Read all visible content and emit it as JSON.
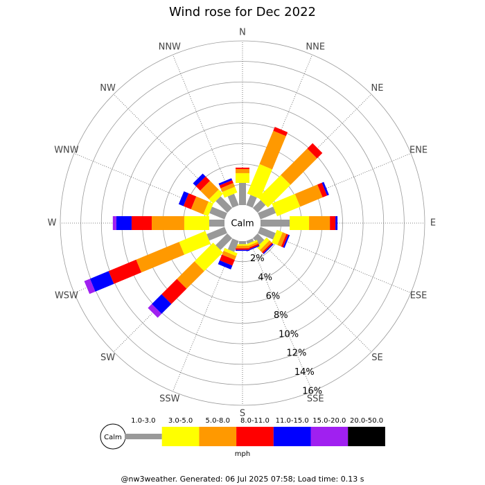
{
  "chart_data": {
    "type": "windrose",
    "title": "Wind rose for Dec 2022",
    "calm_label": "Calm",
    "units": "mph",
    "footer": "@nw3weather. Generated: 06 Jul 2025 07:58; Load time: 0.13 s",
    "categories": [
      "N",
      "NNE",
      "NE",
      "ENE",
      "E",
      "ESE",
      "SE",
      "SSE",
      "S",
      "SSW",
      "SW",
      "WSW",
      "W",
      "WNW",
      "NW",
      "NNW"
    ],
    "ylim": [
      0,
      16
    ],
    "yticks": [
      {
        "value": 2,
        "label": "2%"
      },
      {
        "value": 4,
        "label": "4%"
      },
      {
        "value": 6,
        "label": "6%"
      },
      {
        "value": 8,
        "label": "8%"
      },
      {
        "value": 10,
        "label": "10%"
      },
      {
        "value": 12,
        "label": "12%"
      },
      {
        "value": 14,
        "label": "14%"
      },
      {
        "value": 16,
        "label": "16%"
      }
    ],
    "series": [
      {
        "name": "1.0-3.0",
        "color": "#999999",
        "values": [
          2.16,
          1.08,
          1.08,
          1.62,
          2.84,
          1.6,
          0.9,
          0.3,
          0.3,
          1.15,
          1.62,
          1.89,
          1.49,
          1.6,
          1.6,
          1.2
        ]
      },
      {
        "name": "3.0-5.0",
        "color": "#ffff00",
        "values": [
          0.95,
          3.11,
          3.11,
          2.43,
          1.89,
          0.6,
          0.4,
          0.2,
          0.15,
          0.3,
          2.57,
          2.77,
          2.43,
          0.5,
          0.6,
          0.6
        ]
      },
      {
        "name": "5.0-8.0",
        "color": "#ff9900",
        "values": [
          0.4,
          3.51,
          3.65,
          2.37,
          2.03,
          0.4,
          0.3,
          0.2,
          0.25,
          0.4,
          2.43,
          4.53,
          3.17,
          1.3,
          1.2,
          0.4
        ]
      },
      {
        "name": "8.0-11.0",
        "color": "#ff0000",
        "values": [
          0.14,
          0.41,
          0.74,
          0.47,
          0.54,
          0.2,
          0.15,
          0.15,
          0.15,
          0.6,
          2.1,
          2.9,
          1.96,
          0.8,
          0.6,
          0.3
        ]
      },
      {
        "name": "11.0-15.0",
        "color": "#0000ff",
        "values": [
          0,
          0,
          0,
          0.2,
          0.2,
          0.15,
          0.1,
          0.1,
          0.1,
          0.4,
          1.35,
          1.96,
          1.49,
          0.5,
          0.4,
          0.2
        ]
      },
      {
        "name": "15.0-20.0",
        "color": "#a020f0",
        "values": [
          0,
          0,
          0,
          0,
          0,
          0,
          0,
          0,
          0,
          0,
          0.54,
          0.61,
          0.34,
          0,
          0,
          0
        ]
      },
      {
        "name": "20.0-50.0",
        "color": "#000000",
        "values": [
          0,
          0,
          0,
          0,
          0,
          0,
          0,
          0,
          0,
          0,
          0,
          0,
          0,
          0,
          0,
          0
        ]
      }
    ]
  }
}
